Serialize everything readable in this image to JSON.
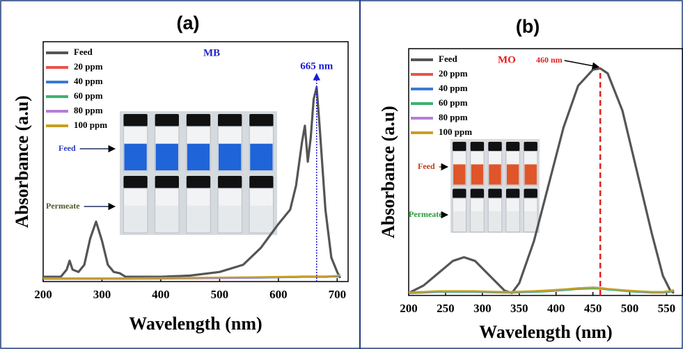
{
  "chart_data": [
    {
      "type": "line",
      "title": "(a)",
      "x_label": "Wavelength (nm)",
      "y_label": "Absorbance (a.u)",
      "xlim": [
        200,
        715
      ],
      "xticks": [
        200,
        300,
        400,
        500,
        600,
        700
      ],
      "ylim": [
        0,
        1
      ],
      "x": [
        200,
        230,
        240,
        245,
        250,
        260,
        270,
        280,
        290,
        300,
        310,
        320,
        330,
        340,
        400,
        450,
        500,
        540,
        570,
        600,
        620,
        630,
        640,
        645,
        650,
        655,
        660,
        665,
        670,
        680,
        690,
        700,
        705
      ],
      "series": [
        {
          "name": "Feed",
          "color": "#555555",
          "values": [
            0.02,
            0.02,
            0.05,
            0.087,
            0.05,
            0.04,
            0.07,
            0.18,
            0.25,
            0.17,
            0.07,
            0.04,
            0.035,
            0.02,
            0.02,
            0.025,
            0.04,
            0.07,
            0.14,
            0.24,
            0.3,
            0.4,
            0.58,
            0.65,
            0.5,
            0.6,
            0.76,
            0.81,
            0.65,
            0.3,
            0.1,
            0.04,
            0.015
          ]
        },
        {
          "name": "20 ppm",
          "color": "#e8534a",
          "values": [
            0.012,
            0.012,
            0.012,
            0.012,
            0.012,
            0.012,
            0.012,
            0.012,
            0.012,
            0.012,
            0.012,
            0.012,
            0.012,
            0.012,
            0.013,
            0.014,
            0.015,
            0.016,
            0.017,
            0.018,
            0.019,
            0.019,
            0.02,
            0.02,
            0.02,
            0.02,
            0.02,
            0.02,
            0.02,
            0.02,
            0.021,
            0.022,
            0.025
          ]
        },
        {
          "name": "40 ppm",
          "color": "#3a7bd5",
          "values": [
            0.011,
            0.011,
            0.011,
            0.011,
            0.011,
            0.011,
            0.011,
            0.011,
            0.011,
            0.011,
            0.011,
            0.011,
            0.011,
            0.011,
            0.012,
            0.013,
            0.014,
            0.015,
            0.016,
            0.017,
            0.018,
            0.018,
            0.019,
            0.019,
            0.019,
            0.019,
            0.019,
            0.019,
            0.019,
            0.019,
            0.02,
            0.021,
            0.023
          ]
        },
        {
          "name": "60 ppm",
          "color": "#3cb371",
          "values": [
            0.013,
            0.013,
            0.013,
            0.013,
            0.013,
            0.013,
            0.013,
            0.013,
            0.013,
            0.013,
            0.013,
            0.013,
            0.013,
            0.013,
            0.014,
            0.015,
            0.016,
            0.017,
            0.018,
            0.019,
            0.02,
            0.02,
            0.021,
            0.021,
            0.021,
            0.021,
            0.021,
            0.021,
            0.021,
            0.021,
            0.022,
            0.023,
            0.026
          ]
        },
        {
          "name": "80 ppm",
          "color": "#b47fd6",
          "values": [
            0.012,
            0.012,
            0.012,
            0.012,
            0.012,
            0.012,
            0.012,
            0.012,
            0.012,
            0.012,
            0.012,
            0.012,
            0.012,
            0.012,
            0.013,
            0.014,
            0.015,
            0.016,
            0.017,
            0.018,
            0.019,
            0.019,
            0.02,
            0.02,
            0.02,
            0.02,
            0.02,
            0.02,
            0.02,
            0.021,
            0.022,
            0.024,
            0.03
          ]
        },
        {
          "name": "100 ppm",
          "color": "#c8a020",
          "values": [
            0.014,
            0.014,
            0.014,
            0.014,
            0.014,
            0.014,
            0.014,
            0.014,
            0.014,
            0.014,
            0.014,
            0.014,
            0.014,
            0.014,
            0.015,
            0.016,
            0.017,
            0.018,
            0.019,
            0.02,
            0.021,
            0.021,
            0.022,
            0.022,
            0.022,
            0.022,
            0.022,
            0.022,
            0.022,
            0.022,
            0.023,
            0.024,
            0.026
          ]
        }
      ],
      "annotations": [
        {
          "text": "MB"
        },
        {
          "text": "665 nm",
          "x": 665
        },
        {
          "text": "Feed"
        },
        {
          "text": "Permeate"
        }
      ]
    },
    {
      "type": "line",
      "title": "(b)",
      "x_label": "Wavelength (nm)",
      "y_label": "Absorbance (a.u)",
      "xlim": [
        200,
        560
      ],
      "xticks": [
        200,
        250,
        300,
        350,
        400,
        450,
        500,
        550
      ],
      "ylim": [
        0,
        1
      ],
      "x": [
        200,
        220,
        240,
        260,
        275,
        290,
        310,
        330,
        340,
        350,
        370,
        390,
        410,
        430,
        450,
        460,
        470,
        490,
        510,
        530,
        545,
        555,
        560
      ],
      "series": [
        {
          "name": "Feed",
          "color": "#555555",
          "values": [
            0.01,
            0.04,
            0.09,
            0.14,
            0.155,
            0.14,
            0.08,
            0.02,
            0.01,
            0.05,
            0.22,
            0.45,
            0.68,
            0.85,
            0.915,
            0.92,
            0.9,
            0.75,
            0.5,
            0.25,
            0.08,
            0.02,
            0.01
          ]
        },
        {
          "name": "20 ppm",
          "color": "#e8534a",
          "values": [
            0.01,
            0.012,
            0.015,
            0.015,
            0.015,
            0.015,
            0.013,
            0.012,
            0.012,
            0.013,
            0.015,
            0.018,
            0.022,
            0.028,
            0.03,
            0.028,
            0.025,
            0.02,
            0.015,
            0.012,
            0.012,
            0.015,
            0.02
          ]
        },
        {
          "name": "40 ppm",
          "color": "#3a7bd5",
          "values": [
            0.011,
            0.013,
            0.016,
            0.016,
            0.016,
            0.016,
            0.014,
            0.013,
            0.013,
            0.014,
            0.016,
            0.019,
            0.023,
            0.029,
            0.031,
            0.029,
            0.026,
            0.021,
            0.016,
            0.013,
            0.013,
            0.016,
            0.021
          ]
        },
        {
          "name": "60 ppm",
          "color": "#3cb371",
          "values": [
            0.009,
            0.011,
            0.014,
            0.014,
            0.014,
            0.014,
            0.012,
            0.011,
            0.011,
            0.012,
            0.014,
            0.017,
            0.021,
            0.026,
            0.028,
            0.027,
            0.024,
            0.019,
            0.014,
            0.011,
            0.011,
            0.014,
            0.019
          ]
        },
        {
          "name": "80 ppm",
          "color": "#b47fd6",
          "values": [
            0.012,
            0.014,
            0.017,
            0.017,
            0.017,
            0.017,
            0.015,
            0.014,
            0.014,
            0.015,
            0.017,
            0.02,
            0.024,
            0.03,
            0.033,
            0.031,
            0.027,
            0.022,
            0.017,
            0.014,
            0.014,
            0.017,
            0.022
          ]
        },
        {
          "name": "100 ppm",
          "color": "#c8a020",
          "values": [
            0.013,
            0.015,
            0.018,
            0.018,
            0.018,
            0.018,
            0.016,
            0.015,
            0.015,
            0.016,
            0.018,
            0.021,
            0.025,
            0.03,
            0.032,
            0.03,
            0.027,
            0.022,
            0.018,
            0.015,
            0.015,
            0.018,
            0.023
          ]
        }
      ],
      "annotations": [
        {
          "text": "MO"
        },
        {
          "text": "460 nm",
          "x": 460
        },
        {
          "text": "Feed"
        },
        {
          "text": "Permeate"
        }
      ]
    }
  ]
}
